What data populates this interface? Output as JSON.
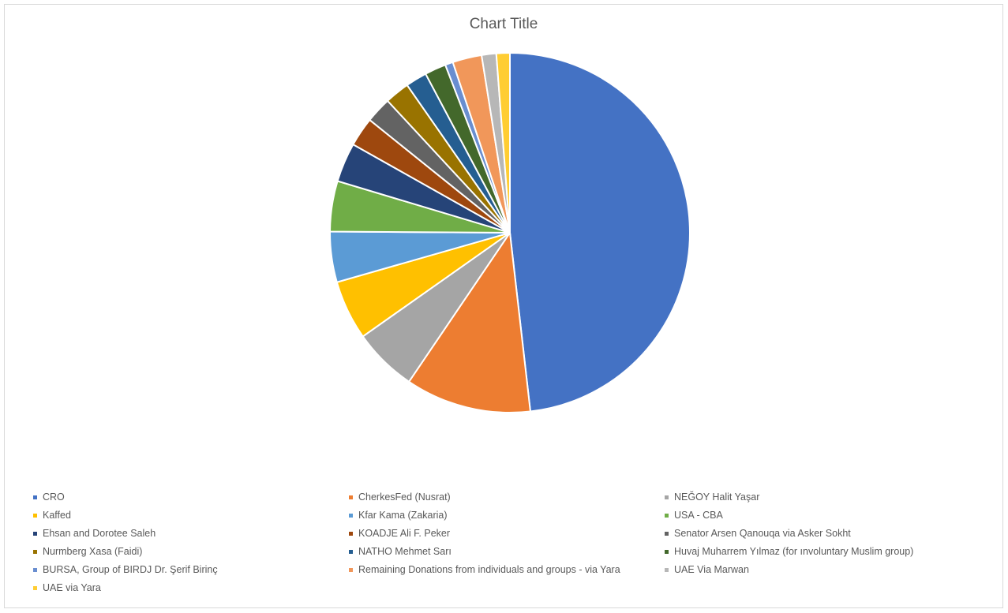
{
  "chart_data": {
    "type": "pie",
    "title": "Chart Title",
    "legend_position": "bottom",
    "slices": [
      {
        "label": "CRO",
        "value": 47.8,
        "color": "#4472C4"
      },
      {
        "label": "CherkesFed (Nusrat)",
        "value": 11.2,
        "color": "#ED7D31"
      },
      {
        "label": "NEĞOY Halit Yaşar",
        "value": 5.7,
        "color": "#A5A5A5"
      },
      {
        "label": "Kaffed",
        "value": 5.3,
        "color": "#FFC000"
      },
      {
        "label": "Kfar Kama (Zakaria)",
        "value": 4.5,
        "color": "#5B9BD5"
      },
      {
        "label": "USA - CBA",
        "value": 4.5,
        "color": "#70AD47"
      },
      {
        "label": "Ehsan and Dorotee Saleh",
        "value": 3.5,
        "color": "#264478"
      },
      {
        "label": "KOADJE  Ali F. Peker",
        "value": 2.6,
        "color": "#9E480E"
      },
      {
        "label": "Senator Arsen Qanouqa via Asker Sokht",
        "value": 2.3,
        "color": "#636363"
      },
      {
        "label": "Nurmberg Xasa (Faidi)",
        "value": 2.2,
        "color": "#997300"
      },
      {
        "label": "NATHO Mehmet Sarı",
        "value": 1.9,
        "color": "#255E91"
      },
      {
        "label": "Huvaj Muharrem Yılmaz (for ınvoluntary Muslim group)",
        "value": 1.9,
        "color": "#43682B"
      },
      {
        "label": "BURSA, Group of BIRDJ Dr. Şerif Birinç",
        "value": 0.7,
        "color": "#698ED0"
      },
      {
        "label": "Remaining Donations from individuals and groups -  via Yara",
        "value": 2.6,
        "color": "#F1975A"
      },
      {
        "label": "UAE Via Marwan",
        "value": 1.3,
        "color": "#B7B7B7"
      },
      {
        "label": "UAE via Yara",
        "value": 1.2,
        "color": "#FFCD33"
      }
    ]
  }
}
